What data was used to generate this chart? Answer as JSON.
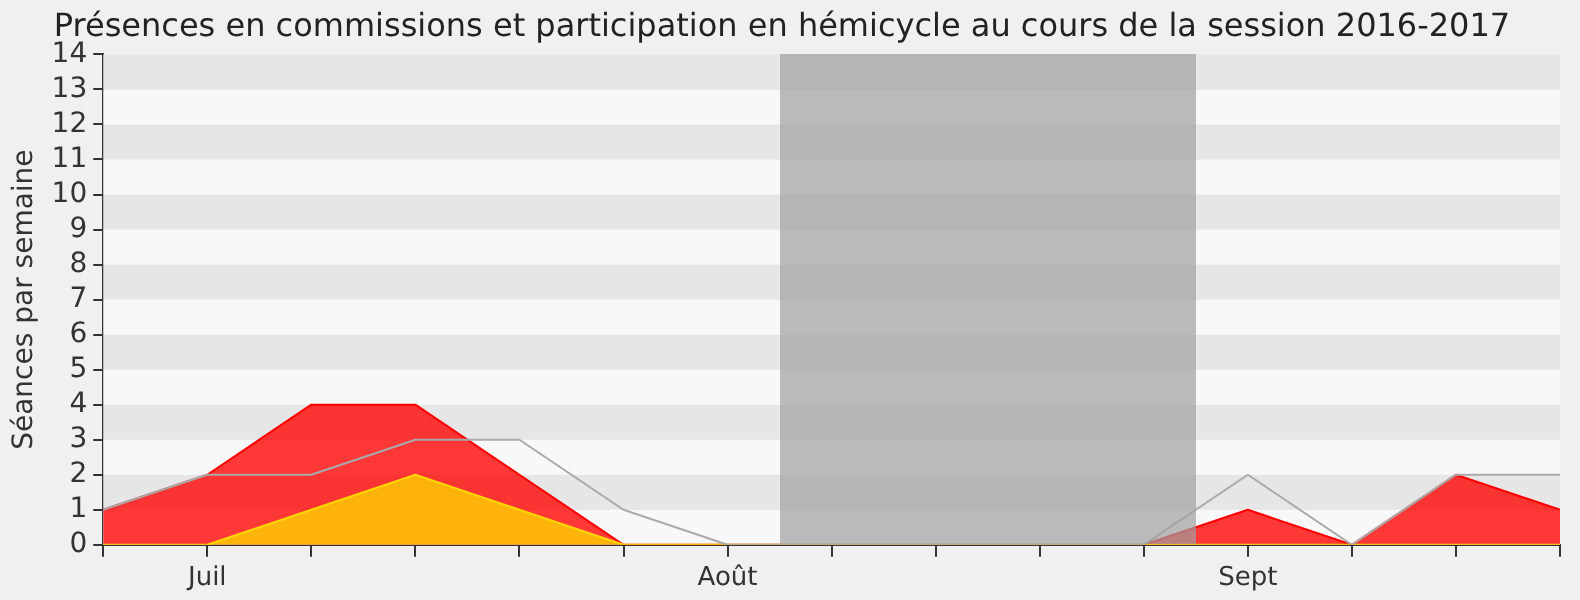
{
  "chart_data": {
    "type": "area",
    "title": "Présences en commissions et participation en hémicycle au cours de la session 2016-2017",
    "ylabel": "Séances par semaine",
    "categories": [
      null,
      "Juil",
      null,
      null,
      null,
      null,
      "Août",
      null,
      null,
      null,
      null,
      "Sept",
      null,
      null,
      null
    ],
    "ylim": [
      0,
      14
    ],
    "yticks": [
      0,
      1,
      2,
      3,
      4,
      5,
      6,
      7,
      8,
      9,
      10,
      11,
      12,
      13,
      14
    ],
    "series": [
      {
        "type": "area",
        "color": "#ff0000",
        "values": [
          1,
          2,
          4,
          4,
          2,
          0,
          0,
          0,
          0,
          0,
          0,
          1,
          0,
          2,
          1
        ]
      },
      {
        "color": "#ffd700",
        "values": [
          0,
          0,
          1,
          2,
          1,
          0,
          0,
          0,
          0,
          0,
          0,
          0,
          0,
          0,
          0
        ]
      },
      {
        "type": "line",
        "color": "#aaaaaa",
        "values": [
          1,
          2,
          2,
          3,
          3,
          1,
          0,
          0,
          0,
          0,
          0,
          2,
          0,
          2,
          2
        ]
      }
    ],
    "legend": false,
    "marker": "none"
  }
}
